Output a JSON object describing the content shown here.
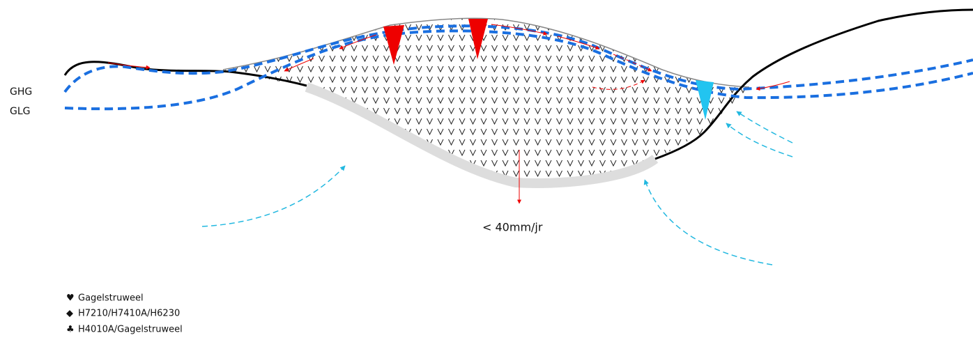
{
  "labels": {
    "ghg": "GHG",
    "glg": "GLG",
    "percolation": "< 40mm/jr"
  },
  "legend": [
    {
      "symbol": "♥",
      "text": "Gagelstruweel"
    },
    {
      "symbol": "◆",
      "text": "H7210/H7410A/H6230"
    },
    {
      "symbol": "♣",
      "text": "H4010A/Gagelstruweel"
    }
  ]
}
